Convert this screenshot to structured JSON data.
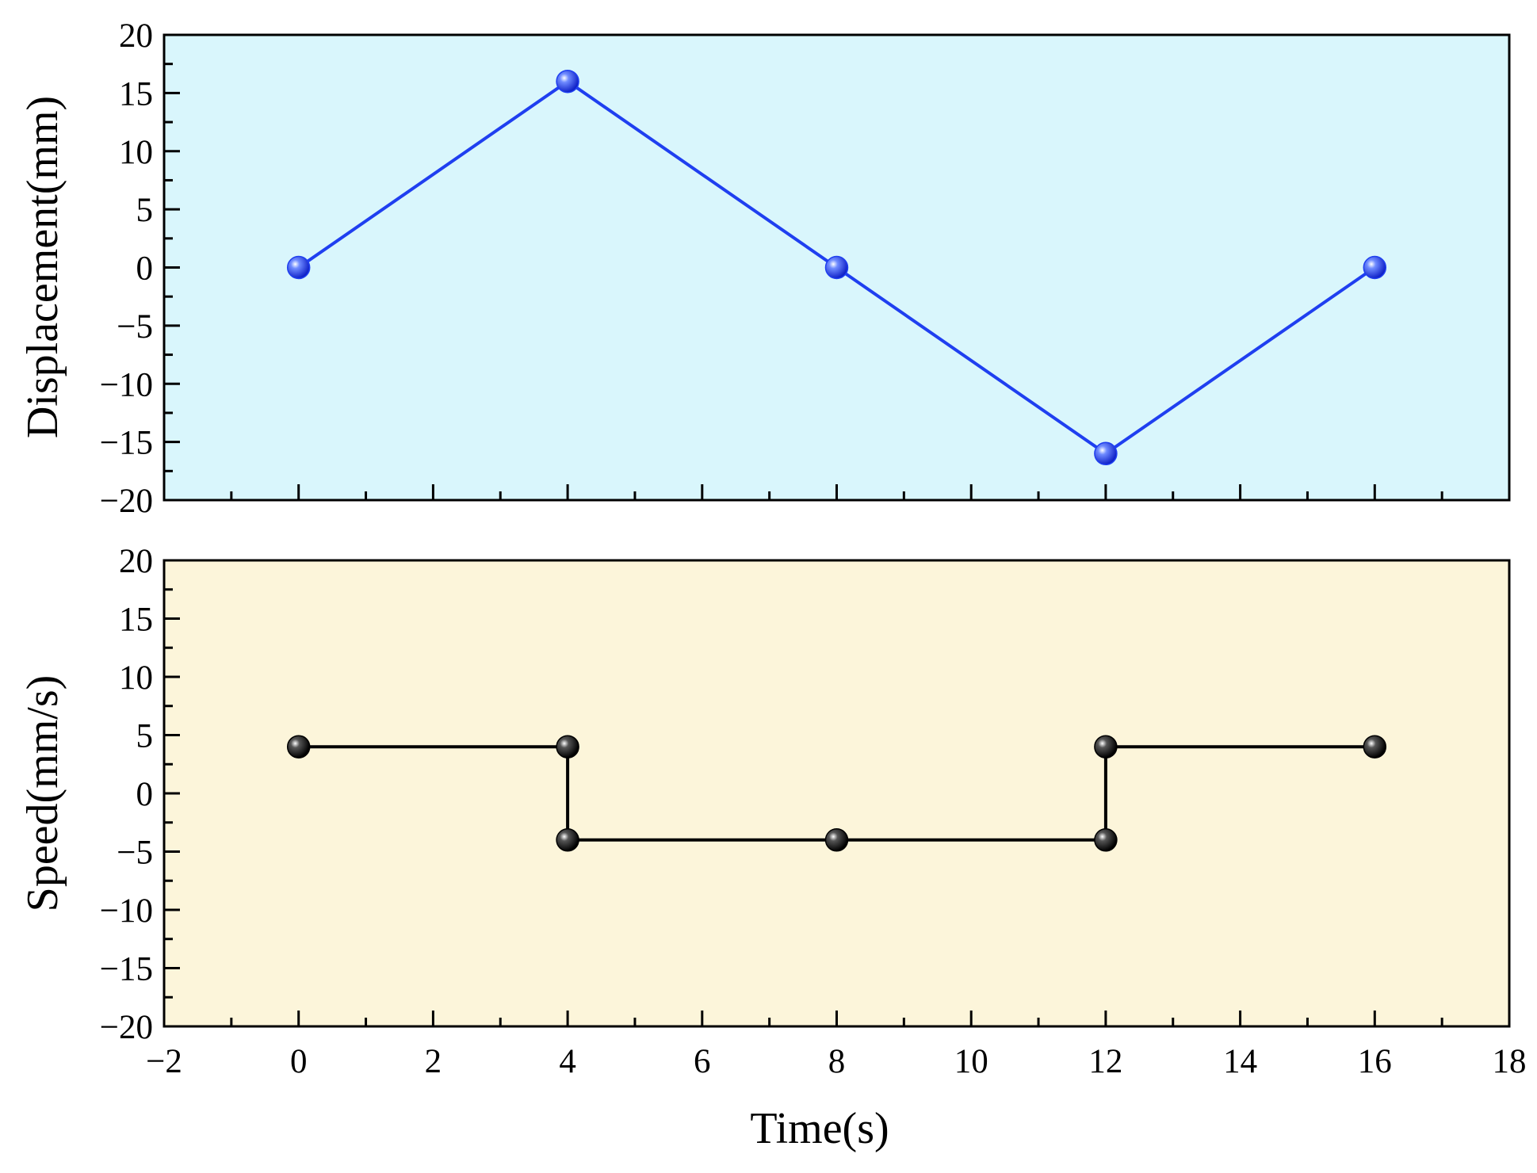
{
  "chart_data": [
    {
      "type": "line",
      "ylabel": "Displacement(mm)",
      "xlabel": "",
      "xlim": [
        -2,
        18
      ],
      "ylim": [
        -20,
        20
      ],
      "xticks": [
        -2,
        0,
        2,
        4,
        6,
        8,
        10,
        12,
        14,
        16,
        18
      ],
      "yticks": [
        20,
        15,
        10,
        5,
        0,
        -5,
        -10,
        -15,
        -20
      ],
      "show_x_tick_labels": false,
      "background": "#d9f6fc",
      "series": [
        {
          "x": [
            0,
            4,
            8,
            12,
            16
          ],
          "y": [
            0,
            16,
            0,
            -16,
            0
          ],
          "color": "#1f3ff0",
          "marker": "sphere"
        }
      ]
    },
    {
      "type": "line",
      "ylabel": "Speed(mm/s)",
      "xlabel": "Time(s)",
      "xlim": [
        -2,
        18
      ],
      "ylim": [
        -20,
        20
      ],
      "xticks": [
        -2,
        0,
        2,
        4,
        6,
        8,
        10,
        12,
        14,
        16,
        18
      ],
      "yticks": [
        20,
        15,
        10,
        5,
        0,
        -5,
        -10,
        -15,
        -20
      ],
      "show_x_tick_labels": true,
      "background": "#fcf5da",
      "series": [
        {
          "x": [
            0,
            4,
            4,
            8,
            12,
            12,
            16
          ],
          "y": [
            4,
            4,
            -4,
            -4,
            -4,
            4,
            4
          ],
          "color": "#000000",
          "marker": "sphere"
        }
      ]
    }
  ]
}
